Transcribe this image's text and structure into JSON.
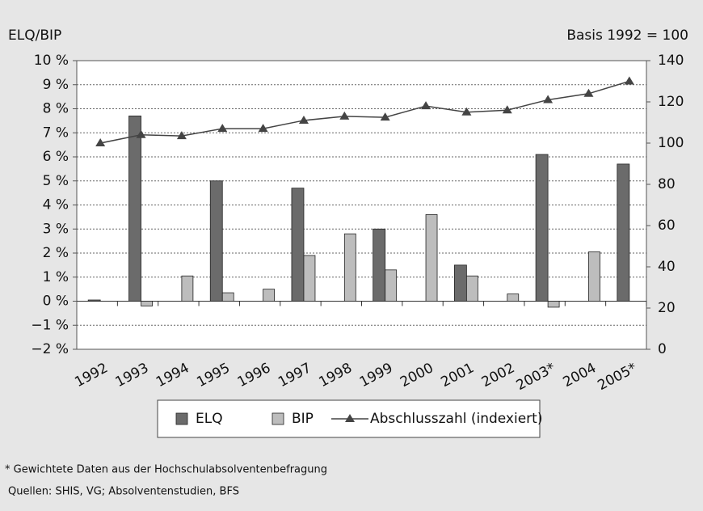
{
  "chart_data": {
    "type": "bar",
    "y_label": "ELQ/BIP",
    "y2_label": "Basis 1992 = 100",
    "categories": [
      "1992",
      "1993",
      "1994",
      "1995",
      "1996",
      "1997",
      "1998",
      "1999",
      "2000",
      "2001",
      "2002",
      "2003*",
      "2004",
      "2005*"
    ],
    "series": [
      {
        "name": "ELQ",
        "color": "#6b6b6b",
        "values": [
          0.05,
          7.7,
          null,
          5.0,
          null,
          4.7,
          null,
          3.0,
          null,
          1.5,
          null,
          6.1,
          null,
          5.7
        ]
      },
      {
        "name": "BIP",
        "color": "#bdbdbd",
        "values": [
          null,
          -0.2,
          1.05,
          0.35,
          0.5,
          1.9,
          2.8,
          1.3,
          3.6,
          1.05,
          0.3,
          -0.25,
          2.05,
          null
        ]
      },
      {
        "name": "Abschlusszahl (indexiert)",
        "color": "#444444",
        "type": "line",
        "axis": "y2",
        "values": [
          100,
          104,
          103.5,
          107,
          107,
          111,
          113,
          112.5,
          118,
          115,
          116,
          121,
          124,
          130
        ]
      }
    ],
    "ylim": [
      -2,
      10
    ],
    "yticks": [
      {
        "value": -2,
        "label": "−2 %"
      },
      {
        "value": -1,
        "label": "−1 %"
      },
      {
        "value": 0,
        "label": "0 %"
      },
      {
        "value": 1,
        "label": "1 %"
      },
      {
        "value": 2,
        "label": "2 %"
      },
      {
        "value": 3,
        "label": "3 %"
      },
      {
        "value": 4,
        "label": "4 %"
      },
      {
        "value": 5,
        "label": "5 %"
      },
      {
        "value": 6,
        "label": "6 %"
      },
      {
        "value": 7,
        "label": "7 %"
      },
      {
        "value": 8,
        "label": "8 %"
      },
      {
        "value": 9,
        "label": "9 %"
      },
      {
        "value": 10,
        "label": "10 %"
      }
    ],
    "y2lim": [
      0,
      140
    ],
    "y2ticks": [
      0,
      20,
      40,
      60,
      80,
      100,
      120,
      140
    ],
    "grid": true,
    "notes": [
      "* Gewichtete Daten aus der Hochschulabsolventenbefragung",
      "Quellen: SHIS, VG; Absolventenstudien, BFS"
    ]
  }
}
